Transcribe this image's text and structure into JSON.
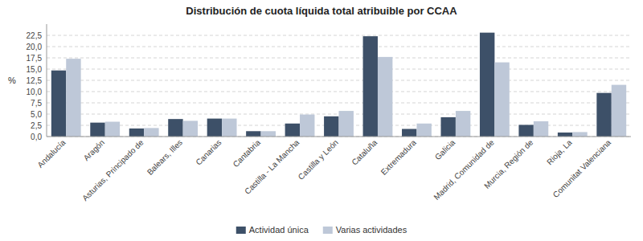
{
  "chart_data": {
    "type": "bar",
    "title": "Distribución de cuota líquida total atribuible por CCAA",
    "y_label": "%",
    "categories": [
      "Andalucía",
      "Aragón",
      "Asturias, Principado de",
      "Balears, Illes",
      "Canarias",
      "Cantabria",
      "Castilla - La Mancha",
      "Castilla y León",
      "Cataluña",
      "Extremadura",
      "Galicia",
      "Madrid, Comunidad de",
      "Murcia, Región de",
      "Rioja, La",
      "Comunitat Valenciana"
    ],
    "series": [
      {
        "name": "Actividad única",
        "color": "#3D5068",
        "values": [
          14.7,
          3.1,
          1.8,
          3.9,
          4.0,
          1.2,
          2.9,
          4.5,
          22.3,
          1.7,
          4.3,
          23.1,
          2.6,
          0.9,
          9.7
        ]
      },
      {
        "name": "Varias actividades",
        "color": "#BEC8D8",
        "values": [
          17.3,
          3.3,
          1.9,
          3.5,
          4.0,
          1.2,
          4.9,
          5.7,
          17.7,
          2.9,
          5.7,
          16.5,
          3.4,
          1.0,
          11.5
        ]
      }
    ],
    "ylim": [
      0,
      25
    ],
    "yticks": [
      {
        "value": 0.0,
        "label": "0,0"
      },
      {
        "value": 2.5,
        "label": "2,5"
      },
      {
        "value": 5.0,
        "label": "5,0"
      },
      {
        "value": 7.5,
        "label": "7,5"
      },
      {
        "value": 10.0,
        "label": "10,0"
      },
      {
        "value": 12.5,
        "label": "12,5"
      },
      {
        "value": 15.0,
        "label": "15,0"
      },
      {
        "value": 17.5,
        "label": "17,5"
      },
      {
        "value": 20.0,
        "label": "20,0"
      },
      {
        "value": 22.5,
        "label": "22,5"
      }
    ],
    "grid": true,
    "legend": "bottom"
  }
}
